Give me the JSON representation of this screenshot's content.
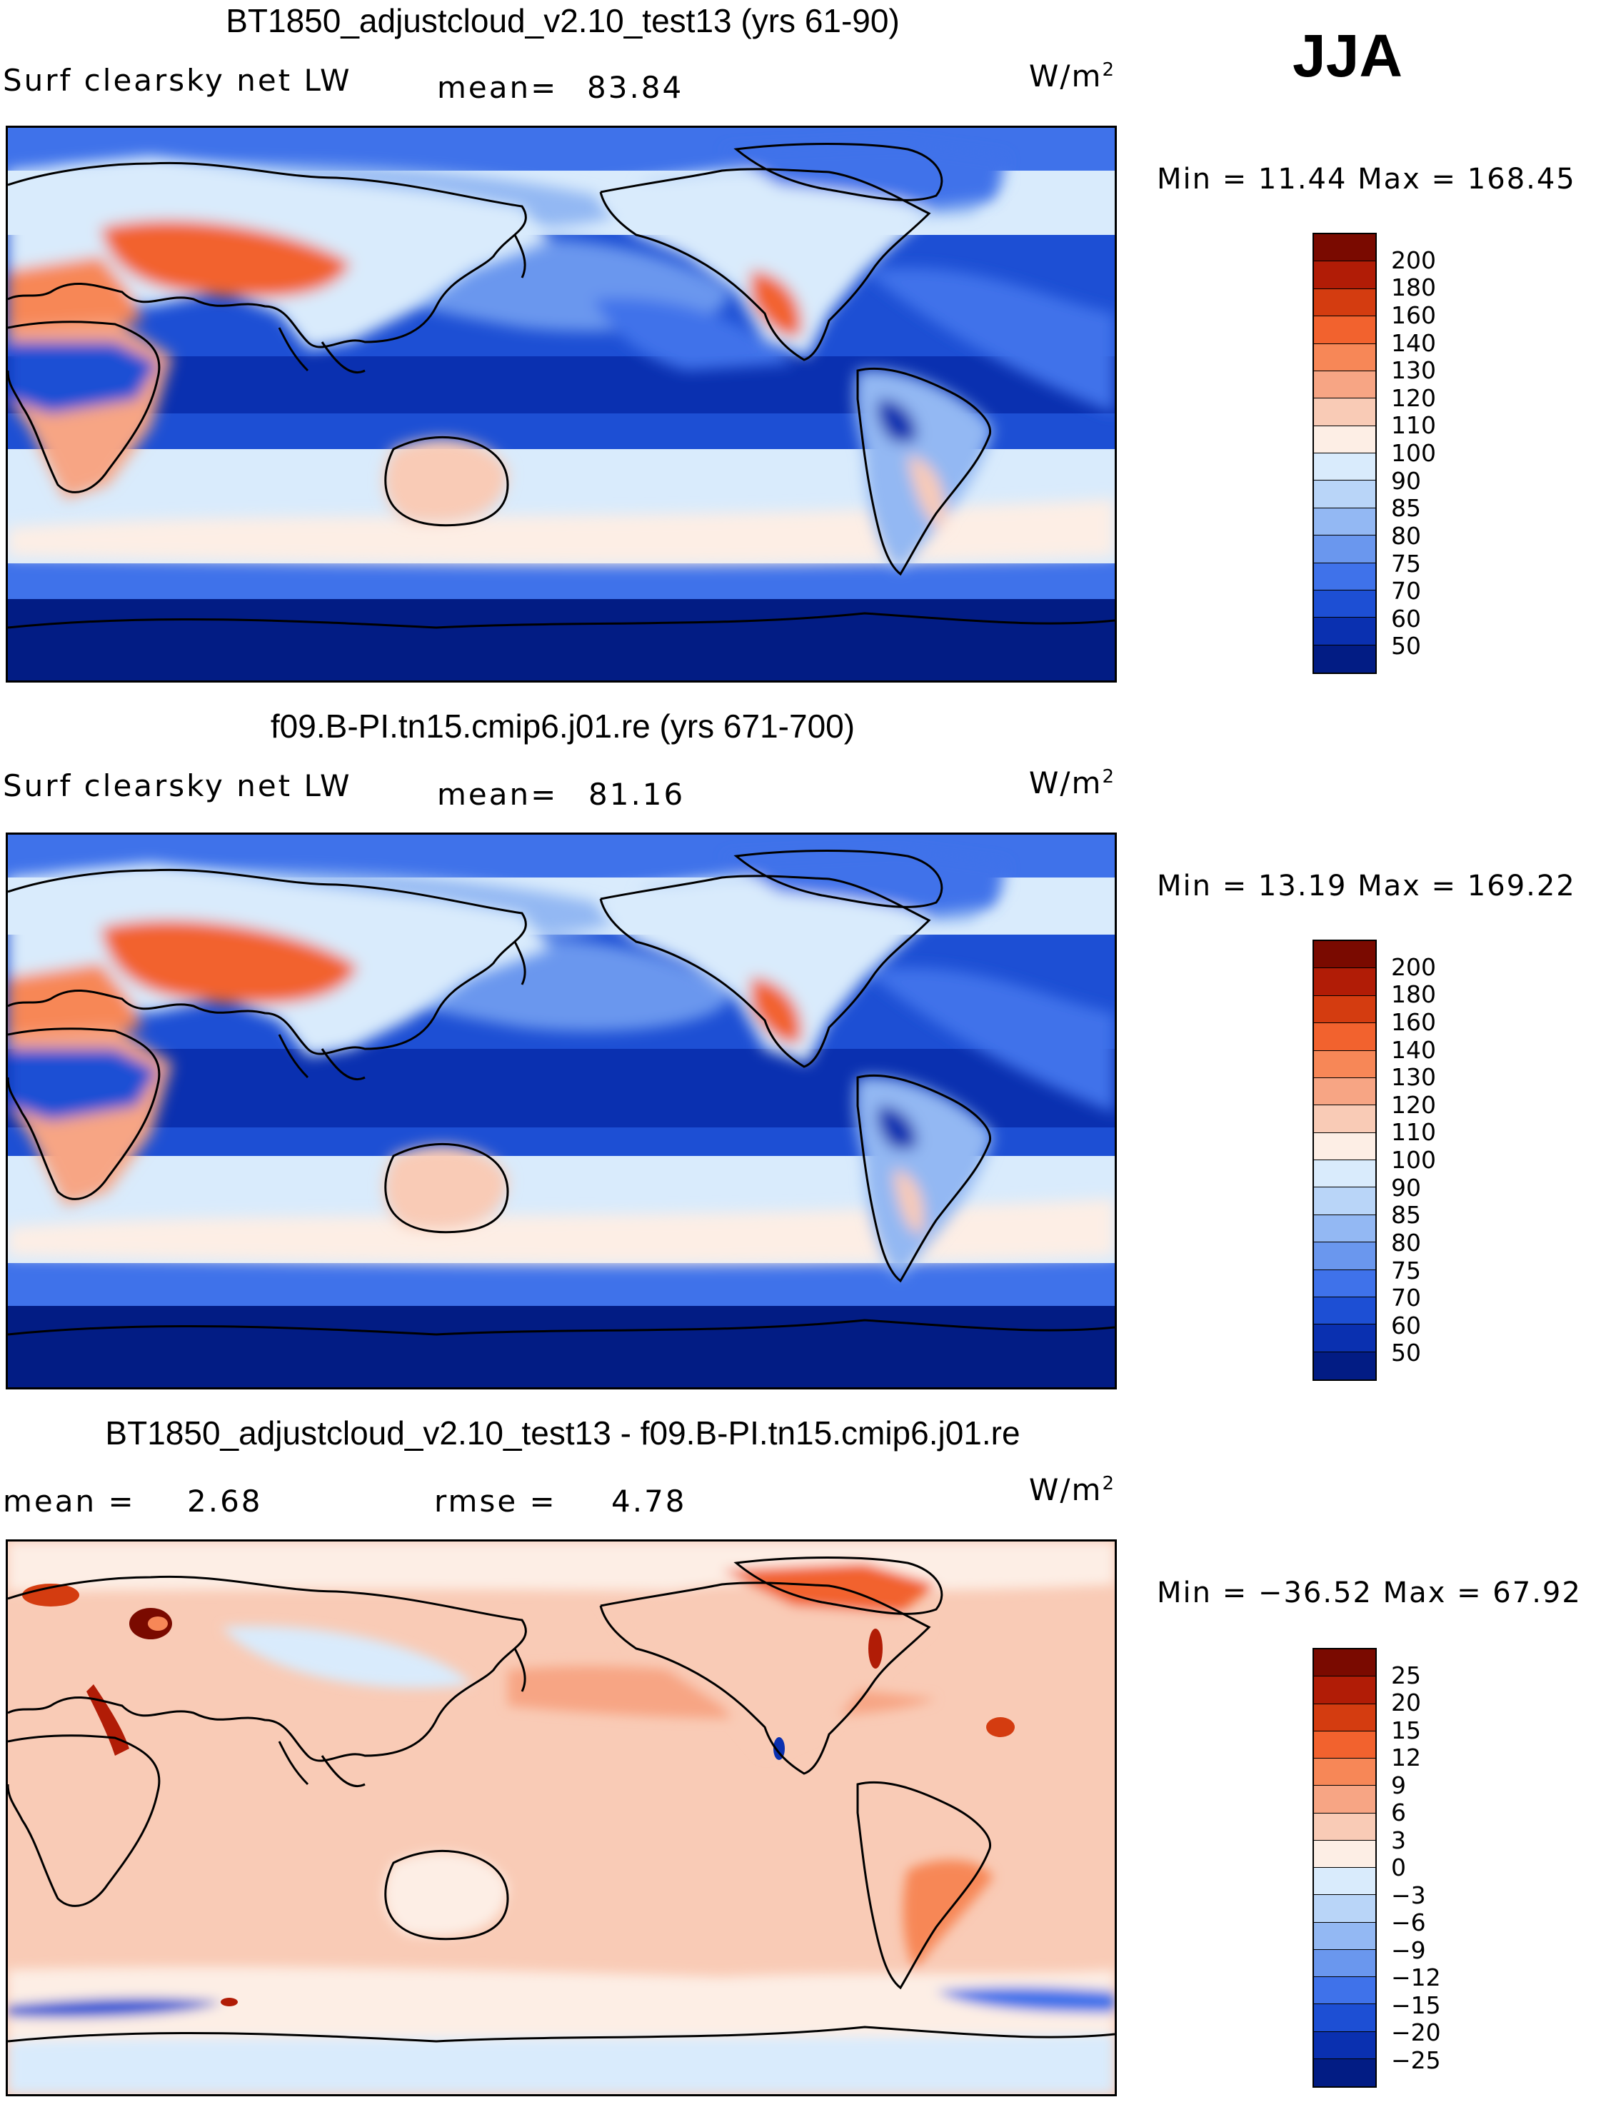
{
  "season": "JJA",
  "panels": [
    {
      "title": "BT1850_adjustcloud_v2.10_test13 (yrs 61-90)",
      "left_label": "Surf  clearsky  net  LW",
      "stat_label": "mean=",
      "stat_value": "83.84",
      "stat2_label": "",
      "stat2_value": "",
      "units": "W/m",
      "units_sup": "2",
      "minmax_text": "Min  =   11.44  Max  =  168.45",
      "colorbar": {
        "levels": [
          "200",
          "180",
          "160",
          "140",
          "130",
          "120",
          "110",
          "100",
          "90",
          "85",
          "80",
          "75",
          "70",
          "60",
          "50"
        ],
        "colors": [
          "#7a0a00",
          "#b11c06",
          "#d43c10",
          "#f2622e",
          "#f78757",
          "#f7a584",
          "#f9cbb6",
          "#fdeee5",
          "#d9ebfc",
          "#b9d5f8",
          "#93b8f3",
          "#6a97ee",
          "#3f72ea",
          "#1d4fd4",
          "#0a30b0",
          "#021c84"
        ]
      }
    },
    {
      "title": "f09.B-PI.tn15.cmip6.j01.re (yrs 671-700)",
      "left_label": "Surf  clearsky  net  LW",
      "stat_label": "mean=",
      "stat_value": "81.16",
      "stat2_label": "",
      "stat2_value": "",
      "units": "W/m",
      "units_sup": "2",
      "minmax_text": "Min  =   13.19  Max  =  169.22",
      "colorbar": {
        "levels": [
          "200",
          "180",
          "160",
          "140",
          "130",
          "120",
          "110",
          "100",
          "90",
          "85",
          "80",
          "75",
          "70",
          "60",
          "50"
        ],
        "colors": [
          "#7a0a00",
          "#b11c06",
          "#d43c10",
          "#f2622e",
          "#f78757",
          "#f7a584",
          "#f9cbb6",
          "#fdeee5",
          "#d9ebfc",
          "#b9d5f8",
          "#93b8f3",
          "#6a97ee",
          "#3f72ea",
          "#1d4fd4",
          "#0a30b0",
          "#021c84"
        ]
      }
    },
    {
      "title": "BT1850_adjustcloud_v2.10_test13 - f09.B-PI.tn15.cmip6.j01.re",
      "left_label": "mean  =",
      "stat_label": "2.68",
      "stat_value": "",
      "stat2_label": "rmse  =",
      "stat2_value": "4.78",
      "units": "W/m",
      "units_sup": "2",
      "minmax_text": "Min  = −36.52  Max  =    67.92",
      "colorbar": {
        "levels": [
          "25",
          "20",
          "15",
          "12",
          "9",
          "6",
          "3",
          "0",
          "−3",
          "−6",
          "−9",
          "−12",
          "−15",
          "−20",
          "−25"
        ],
        "colors": [
          "#7a0a00",
          "#b11c06",
          "#d43c10",
          "#f2622e",
          "#f78757",
          "#f7a584",
          "#f9cbb6",
          "#fdeee5",
          "#d9ebfc",
          "#b9d5f8",
          "#93b8f3",
          "#6a97ee",
          "#3f72ea",
          "#1d4fd4",
          "#0a30b0",
          "#021c84"
        ]
      }
    }
  ]
}
